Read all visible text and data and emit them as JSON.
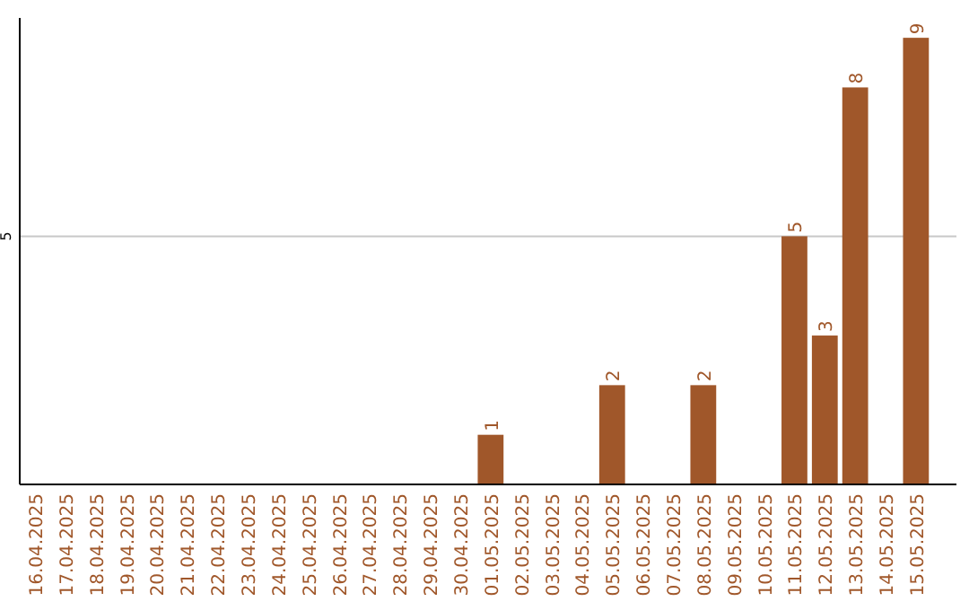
{
  "chart_data": {
    "type": "bar",
    "categories": [
      "16.04.2025",
      "17.04.2025",
      "18.04.2025",
      "19.04.2025",
      "20.04.2025",
      "21.04.2025",
      "22.04.2025",
      "23.04.2025",
      "24.04.2025",
      "25.04.2025",
      "26.04.2025",
      "27.04.2025",
      "28.04.2025",
      "29.04.2025",
      "30.04.2025",
      "01.05.2025",
      "02.05.2025",
      "03.05.2025",
      "04.05.2025",
      "05.05.2025",
      "06.05.2025",
      "07.05.2025",
      "08.05.2025",
      "09.05.2025",
      "10.05.2025",
      "11.05.2025",
      "12.05.2025",
      "13.05.2025",
      "14.05.2025",
      "15.05.2025"
    ],
    "values": [
      null,
      null,
      null,
      null,
      null,
      null,
      null,
      null,
      null,
      null,
      null,
      null,
      null,
      null,
      null,
      1,
      null,
      null,
      null,
      2,
      null,
      null,
      2,
      null,
      null,
      5,
      3,
      8,
      null,
      9
    ],
    "data_labels": true,
    "color": "#a0572a",
    "ylim": [
      0,
      9.4
    ],
    "yticks": [
      5
    ],
    "grid": "y"
  }
}
